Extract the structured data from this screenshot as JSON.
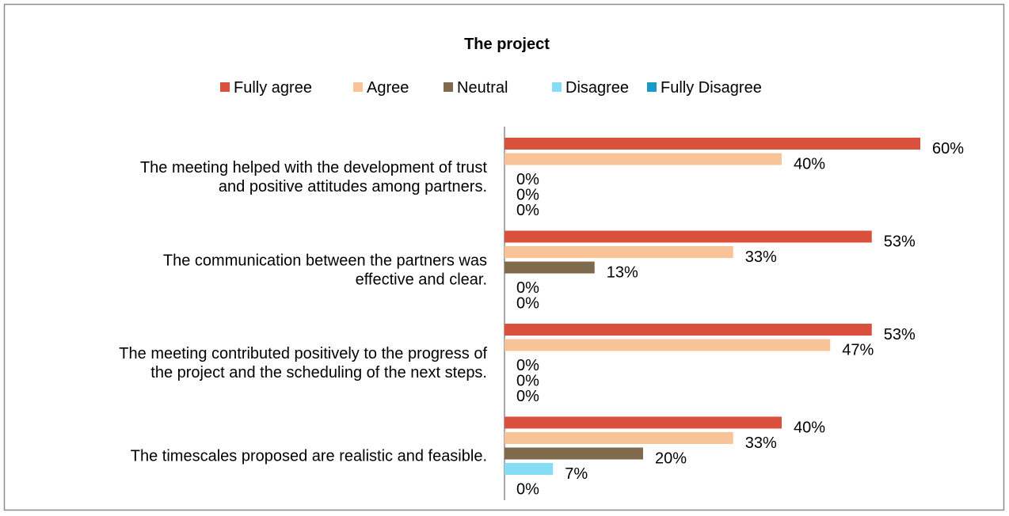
{
  "chart_data": {
    "type": "bar",
    "orientation": "horizontal",
    "title": "The project",
    "categories": [
      [
        "The meeting helped with the development of trust",
        "and positive attitudes among partners."
      ],
      [
        "The communication between the partners was",
        "effective and clear."
      ],
      [
        "The meeting contributed positively to the progress of",
        "the project and the scheduling of the next steps."
      ],
      [
        "The timescales proposed are realistic and feasible."
      ]
    ],
    "series": [
      {
        "name": "Fully agree",
        "color": "#d9503c",
        "values": [
          60,
          53,
          53,
          40
        ],
        "value_labels": [
          "60%",
          "53%",
          "53%",
          "40%"
        ]
      },
      {
        "name": "Agree",
        "color": "#f9c398",
        "values": [
          40,
          33,
          47,
          33
        ],
        "value_labels": [
          "40%",
          "33%",
          "47%",
          "33%"
        ]
      },
      {
        "name": "Neutral",
        "color": "#7f6a4e",
        "values": [
          0,
          13,
          0,
          20
        ],
        "value_labels": [
          "0%",
          "13%",
          "0%",
          "20%"
        ]
      },
      {
        "name": "Disagree",
        "color": "#87dcf5",
        "values": [
          0,
          0,
          0,
          7
        ],
        "value_labels": [
          "0%",
          "0%",
          "0%",
          "7%"
        ]
      },
      {
        "name": "Fully Disagree",
        "color": "#1a9ac9",
        "values": [
          0,
          0,
          0,
          0
        ],
        "value_labels": [
          "0%",
          "0%",
          "0%",
          "0%"
        ]
      }
    ],
    "legend": "top"
  }
}
